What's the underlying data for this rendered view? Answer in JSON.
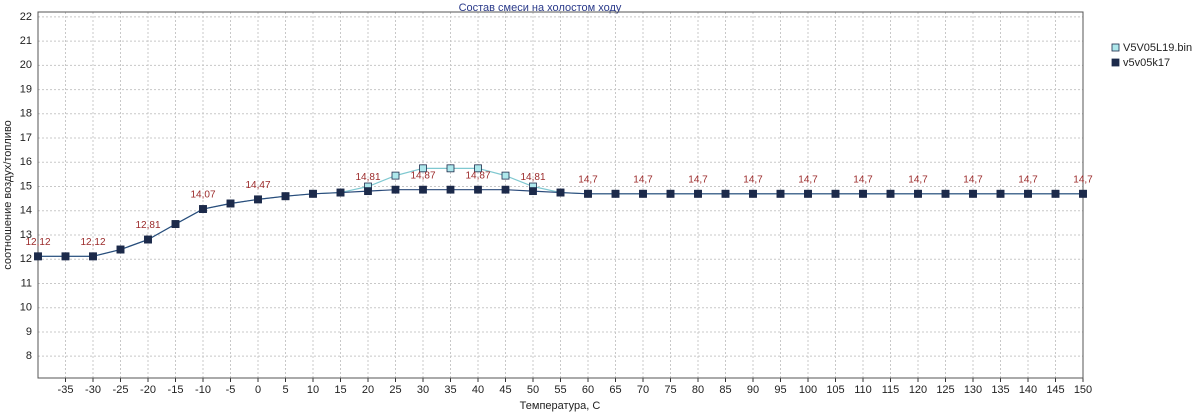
{
  "chart_data": {
    "type": "line",
    "title": "Состав смеси на холостом ходу",
    "x_label": "Температура, С",
    "y_label": "соотношение воздух/топливо",
    "x": [
      -40,
      -35,
      -30,
      -25,
      -20,
      -15,
      -10,
      -5,
      0,
      5,
      10,
      15,
      20,
      25,
      30,
      35,
      40,
      45,
      50,
      55,
      60,
      65,
      70,
      75,
      80,
      85,
      90,
      95,
      100,
      105,
      110,
      115,
      120,
      125,
      130,
      135,
      140,
      145,
      150
    ],
    "series": [
      {
        "name": "V5V05L19.bin",
        "color": "#aee8ec",
        "values": [
          12.12,
          12.12,
          12.12,
          12.4,
          12.81,
          13.45,
          14.07,
          14.3,
          14.47,
          14.6,
          14.7,
          14.75,
          15.0,
          15.45,
          15.75,
          15.75,
          15.75,
          15.45,
          15.0,
          14.75,
          14.7,
          14.7,
          14.7,
          14.7,
          14.7,
          14.7,
          14.7,
          14.7,
          14.7,
          14.7,
          14.7,
          14.7,
          14.7,
          14.7,
          14.7,
          14.7,
          14.7,
          14.7,
          14.7
        ]
      },
      {
        "name": "v5v05k17",
        "color": "#1c2a4a",
        "values": [
          12.12,
          12.12,
          12.12,
          12.4,
          12.81,
          13.45,
          14.07,
          14.3,
          14.47,
          14.6,
          14.7,
          14.75,
          14.81,
          14.87,
          14.87,
          14.87,
          14.87,
          14.87,
          14.81,
          14.75,
          14.7,
          14.7,
          14.7,
          14.7,
          14.7,
          14.7,
          14.7,
          14.7,
          14.7,
          14.7,
          14.7,
          14.7,
          14.7,
          14.7,
          14.7,
          14.7,
          14.7,
          14.7,
          14.7
        ],
        "value_labels": [
          "12,12",
          null,
          "12,12",
          null,
          "12,81",
          null,
          "14,07",
          null,
          "14,47",
          null,
          null,
          null,
          "14,81",
          null,
          "14,87",
          null,
          "14,87",
          null,
          "14,81",
          null,
          "14,7",
          null,
          "14,7",
          null,
          "14,7",
          null,
          "14,7",
          null,
          "14,7",
          null,
          "14,7",
          null,
          "14,7",
          null,
          "14,7",
          null,
          "14,7",
          null,
          "14,7"
        ]
      }
    ],
    "xlim": [
      -40,
      150
    ],
    "xticks": [
      -35,
      -30,
      -25,
      -20,
      -15,
      -10,
      -5,
      0,
      5,
      10,
      15,
      20,
      25,
      30,
      35,
      40,
      45,
      50,
      55,
      60,
      65,
      70,
      75,
      80,
      85,
      90,
      95,
      100,
      105,
      110,
      115,
      120,
      125,
      130,
      135,
      140,
      145,
      150
    ],
    "ylim": [
      7.1,
      22.2
    ],
    "yticks": [
      8,
      9,
      10,
      11,
      12,
      13,
      14,
      15,
      16,
      17,
      18,
      19,
      20,
      21,
      22
    ],
    "grid": true,
    "label_color": "#9b2a2a"
  }
}
